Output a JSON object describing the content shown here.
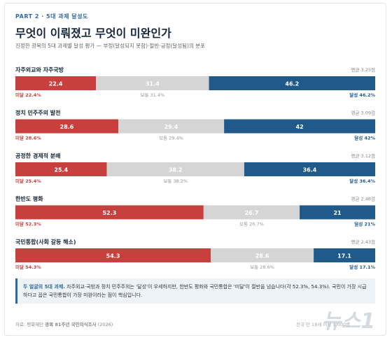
{
  "chart_data": {
    "type": "bar",
    "kicker": "PART 2 · 5대 과제 달성도",
    "title": "무엇이 이뤄졌고 무엇이 미완인가",
    "subtitle": "진정한 광복의 5대 과제별 달성 평가 — 부정(달성되지 못함)·절반·긍정(달성됨)의 분포",
    "categories": [
      "자주외교와 자주국방",
      "정치 민주주의 발전",
      "공정한 경제적 분배",
      "한반도 평화",
      "국민통합(사회 갈등 해소)"
    ],
    "averages": [
      "평균 3.25점",
      "평균 3.09점",
      "평균 3.12점",
      "평균 2.48점",
      "평균 2.43점"
    ],
    "series": [
      {
        "name": "미달",
        "color": "#c8403e",
        "values": [
          22.4,
          28.6,
          25.4,
          52.3,
          54.3
        ],
        "value_labels": [
          "미달 22.4%",
          "미달 28.6%",
          "미달 25.4%",
          "미달 52.3%",
          "미달 54.3%"
        ]
      },
      {
        "name": "보통",
        "color": "#d5d5d5",
        "values": [
          31.4,
          29.4,
          38.2,
          26.7,
          28.6
        ],
        "value_labels": [
          "보통 31.4%",
          "보통 29.4%",
          "보통 38.2%",
          "보통 26.7%",
          "보통 28.6%"
        ]
      },
      {
        "name": "달성",
        "color": "#1f5a8a",
        "values": [
          46.2,
          42,
          36.4,
          21,
          17.1
        ],
        "value_labels": [
          "달성 46.2%",
          "달성 42%",
          "달성 36.4%",
          "달성 21%",
          "달성 17.1%"
        ]
      }
    ],
    "note": {
      "lead": "두 얼굴의 5대 과제.",
      "text": "자주외교·국방과 정치 민주주의는 '달성'이 우세하지만, 한반도 평화와 국민통합은 '미달'이 절반을 넘습니다(각 52.3%, 54.3%). 국민이 가장 시급하다고 꼽은 국민통합이 가장 미완이라는 점이 핵심입니다."
    },
    "source": {
      "prefix": "자료: 평화재단",
      "name": "광복 81주년 국민의식조사",
      "year": "(2026)"
    },
    "sample": "전국 만 18세 이상 1,000명",
    "watermark": "뉴스1"
  }
}
